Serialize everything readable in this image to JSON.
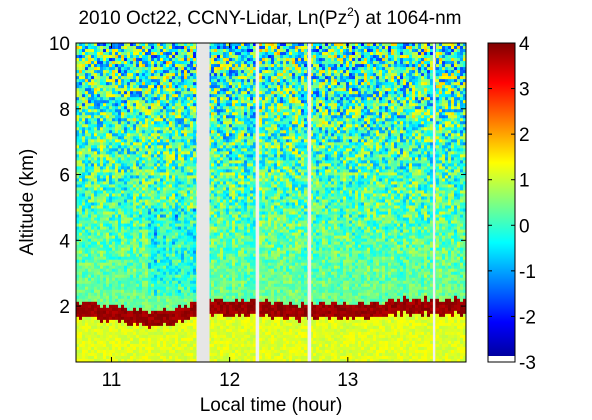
{
  "chart_data": {
    "type": "heatmap",
    "title_prefix": "2010 Oct22, CCNY-Lidar, Ln(Pz",
    "title_sup": "2",
    "title_suffix": ") at 1064-nm",
    "xlabel": "Local time (hour)",
    "ylabel": "Altitude (km)",
    "xlim": [
      10.7,
      14.0
    ],
    "ylim": [
      0.3,
      10
    ],
    "x_ticks": [
      {
        "value": 11,
        "label": "11"
      },
      {
        "value": 12,
        "label": "12"
      },
      {
        "value": 13,
        "label": "13"
      }
    ],
    "y_ticks": [
      {
        "value": 2,
        "label": "2"
      },
      {
        "value": 4,
        "label": "4"
      },
      {
        "value": 6,
        "label": "6"
      },
      {
        "value": 8,
        "label": "8"
      },
      {
        "value": 10,
        "label": "10"
      }
    ],
    "colorbar": {
      "range": [
        -3,
        4
      ],
      "ticks": [
        {
          "value": 4,
          "label": "4"
        },
        {
          "value": 3,
          "label": "3"
        },
        {
          "value": 2,
          "label": "2"
        },
        {
          "value": 1,
          "label": "1"
        },
        {
          "value": 0,
          "label": "0"
        },
        {
          "value": -1,
          "label": "-1"
        },
        {
          "value": -2,
          "label": "-2"
        },
        {
          "value": -3,
          "label": "-3"
        }
      ]
    },
    "data_gaps": [
      {
        "from": 11.72,
        "to": 11.83
      },
      {
        "from": 12.22,
        "to": 12.25
      },
      {
        "from": 12.66,
        "to": 12.69
      },
      {
        "from": 13.72,
        "to": 13.74
      }
    ],
    "boundary_layer_top_km": [
      {
        "time": 10.7,
        "height": 1.9
      },
      {
        "time": 11.0,
        "height": 1.8
      },
      {
        "time": 11.2,
        "height": 1.7
      },
      {
        "time": 11.4,
        "height": 1.6
      },
      {
        "time": 11.6,
        "height": 1.8
      },
      {
        "time": 11.7,
        "height": 1.9
      },
      {
        "time": 11.85,
        "height": 2.0
      },
      {
        "time": 12.0,
        "height": 2.0
      },
      {
        "time": 12.3,
        "height": 1.95
      },
      {
        "time": 12.6,
        "height": 1.85
      },
      {
        "time": 12.9,
        "height": 1.9
      },
      {
        "time": 13.2,
        "height": 1.9
      },
      {
        "time": 13.4,
        "height": 2.0
      },
      {
        "time": 13.7,
        "height": 2.0
      },
      {
        "time": 14.0,
        "height": 2.0
      }
    ]
  }
}
